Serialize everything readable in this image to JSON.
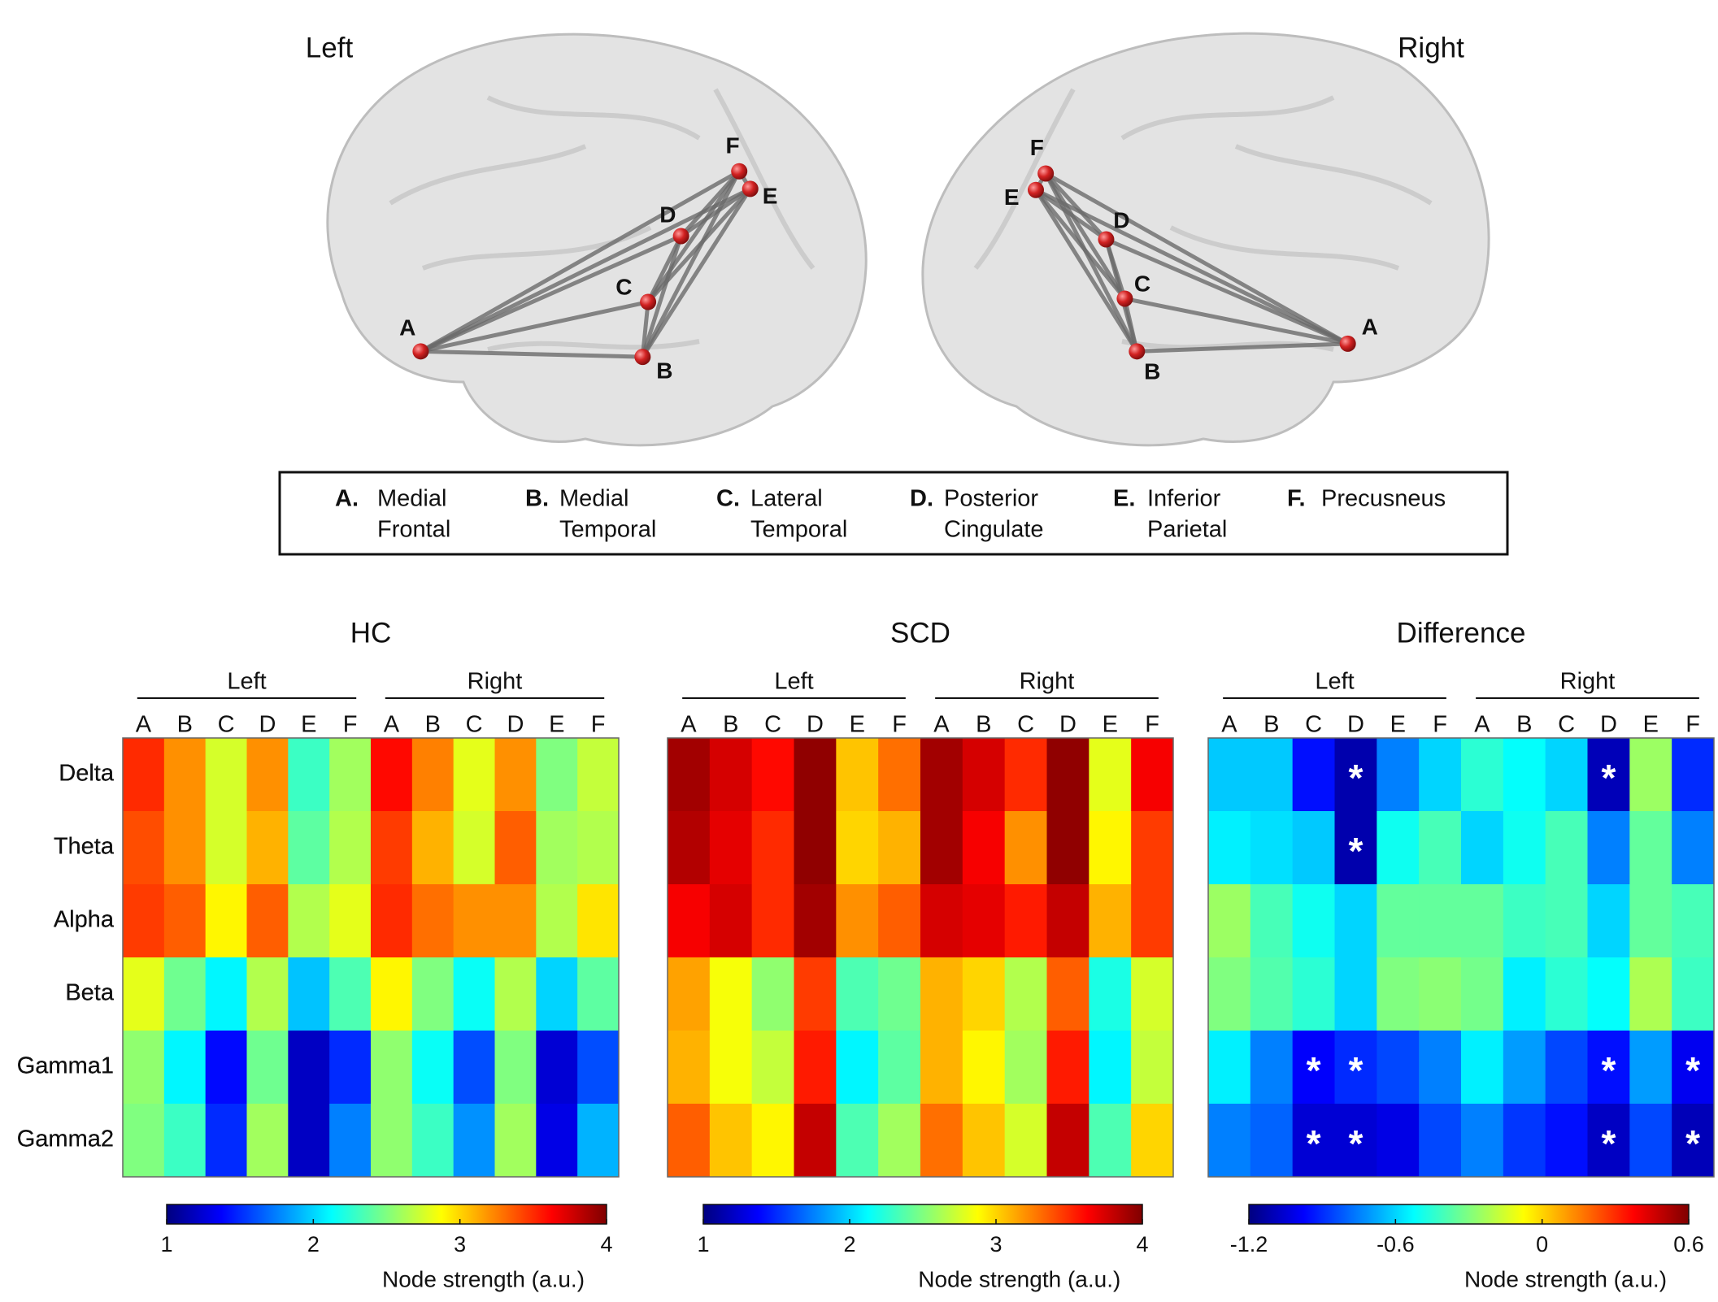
{
  "brain": {
    "left": {
      "label": "Left",
      "nodes": [
        {
          "label": "A"
        },
        {
          "label": "B"
        },
        {
          "label": "C"
        },
        {
          "label": "D"
        },
        {
          "label": "E"
        },
        {
          "label": "F"
        }
      ]
    },
    "right": {
      "label": "Right",
      "nodes": [
        {
          "label": "A"
        },
        {
          "label": "B"
        },
        {
          "label": "C"
        },
        {
          "label": "D"
        },
        {
          "label": "E"
        },
        {
          "label": "F"
        }
      ]
    }
  },
  "legend": {
    "items": [
      {
        "letter": "A.",
        "lines": [
          "Medial",
          "Frontal"
        ]
      },
      {
        "letter": "B.",
        "lines": [
          "Medial",
          "Temporal"
        ]
      },
      {
        "letter": "C.",
        "lines": [
          "Lateral",
          "Temporal"
        ]
      },
      {
        "letter": "D.",
        "lines": [
          "Posterior",
          "Cingulate"
        ]
      },
      {
        "letter": "E.",
        "lines": [
          "Inferior",
          "Parietal"
        ]
      },
      {
        "letter": "F.",
        "lines": [
          "Precusneus"
        ]
      }
    ]
  },
  "chart_data": [
    {
      "type": "heatmap",
      "title": "HC",
      "colormap": "jet",
      "groups": [
        {
          "name": "Left",
          "columns": [
            "A",
            "B",
            "C",
            "D",
            "E",
            "F"
          ]
        },
        {
          "name": "Right",
          "columns": [
            "A",
            "B",
            "C",
            "D",
            "E",
            "F"
          ]
        }
      ],
      "rows": [
        "Delta",
        "Theta",
        "Alpha",
        "Beta",
        "Gamma1",
        "Gamma2"
      ],
      "values": [
        [
          3.5,
          3.2,
          2.75,
          3.2,
          2.3,
          2.6,
          3.6,
          3.25,
          2.8,
          3.2,
          2.5,
          2.7
        ],
        [
          3.4,
          3.2,
          2.75,
          3.1,
          2.4,
          2.65,
          3.45,
          3.1,
          2.75,
          3.35,
          2.6,
          2.65
        ],
        [
          3.45,
          3.35,
          2.9,
          3.35,
          2.65,
          2.8,
          3.5,
          3.3,
          3.2,
          3.2,
          2.65,
          2.95
        ],
        [
          2.8,
          2.45,
          2.1,
          2.65,
          1.95,
          2.35,
          2.9,
          2.5,
          2.15,
          2.65,
          2.0,
          2.4
        ],
        [
          2.55,
          2.1,
          1.4,
          2.45,
          1.2,
          1.5,
          2.55,
          2.15,
          1.6,
          2.5,
          1.25,
          1.6
        ],
        [
          2.5,
          2.3,
          1.5,
          2.6,
          1.2,
          1.75,
          2.55,
          2.3,
          1.8,
          2.6,
          1.3,
          1.9
        ]
      ],
      "zlim": [
        1,
        4
      ],
      "zticks": [
        1,
        2,
        3,
        4
      ],
      "colorbar_label": "Node strength (a.u.)"
    },
    {
      "type": "heatmap",
      "title": "SCD",
      "colormap": "jet",
      "groups": [
        {
          "name": "Left",
          "columns": [
            "A",
            "B",
            "C",
            "D",
            "E",
            "F"
          ]
        },
        {
          "name": "Right",
          "columns": [
            "A",
            "B",
            "C",
            "D",
            "E",
            "F"
          ]
        }
      ],
      "rows": [
        "Delta",
        "Theta",
        "Alpha",
        "Beta",
        "Gamma1",
        "Gamma2"
      ],
      "values": [
        [
          3.9,
          3.75,
          3.6,
          3.95,
          3.05,
          3.3,
          3.9,
          3.75,
          3.5,
          3.95,
          2.8,
          3.65
        ],
        [
          3.85,
          3.7,
          3.5,
          3.95,
          3.0,
          3.1,
          3.9,
          3.65,
          3.2,
          3.95,
          2.9,
          3.45
        ],
        [
          3.65,
          3.75,
          3.5,
          3.9,
          3.2,
          3.35,
          3.75,
          3.7,
          3.55,
          3.8,
          3.1,
          3.45
        ],
        [
          3.15,
          2.85,
          2.55,
          3.45,
          2.35,
          2.45,
          3.1,
          3.0,
          2.65,
          3.35,
          2.2,
          2.75
        ],
        [
          3.1,
          2.85,
          2.7,
          3.55,
          2.1,
          2.4,
          3.1,
          2.9,
          2.6,
          3.55,
          2.1,
          2.7
        ],
        [
          3.35,
          3.05,
          2.9,
          3.8,
          2.35,
          2.6,
          3.3,
          3.05,
          2.75,
          3.8,
          2.35,
          3.0
        ]
      ],
      "zlim": [
        1,
        4
      ],
      "zticks": [
        1,
        2,
        3,
        4
      ],
      "colorbar_label": "Node strength (a.u.)"
    },
    {
      "type": "heatmap",
      "title": "Difference",
      "colormap": "jet",
      "groups": [
        {
          "name": "Left",
          "columns": [
            "A",
            "B",
            "C",
            "D",
            "E",
            "F"
          ]
        },
        {
          "name": "Right",
          "columns": [
            "A",
            "B",
            "C",
            "D",
            "E",
            "F"
          ]
        }
      ],
      "rows": [
        "Delta",
        "Theta",
        "Alpha",
        "Beta",
        "Gamma1",
        "Gamma2"
      ],
      "values": [
        [
          -0.62,
          -0.62,
          -0.95,
          -1.12,
          -0.75,
          -0.6,
          -0.45,
          -0.52,
          -0.6,
          -1.1,
          -0.25,
          -0.9
        ],
        [
          -0.55,
          -0.58,
          -0.62,
          -1.12,
          -0.5,
          -0.4,
          -0.6,
          -0.5,
          -0.4,
          -0.75,
          -0.35,
          -0.75
        ],
        [
          -0.25,
          -0.4,
          -0.5,
          -0.6,
          -0.35,
          -0.35,
          -0.35,
          -0.42,
          -0.4,
          -0.6,
          -0.35,
          -0.4
        ],
        [
          -0.3,
          -0.38,
          -0.45,
          -0.6,
          -0.3,
          -0.28,
          -0.32,
          -0.55,
          -0.45,
          -0.52,
          -0.22,
          -0.42
        ],
        [
          -0.55,
          -0.75,
          -0.98,
          -0.9,
          -0.85,
          -0.75,
          -0.55,
          -0.7,
          -0.85,
          -0.95,
          -0.7,
          -1.0
        ],
        [
          -0.75,
          -0.8,
          -1.05,
          -1.05,
          -1.02,
          -0.85,
          -0.75,
          -0.88,
          -0.95,
          -1.08,
          -0.85,
          -1.1
        ]
      ],
      "annotations": [
        {
          "row": "Delta",
          "group": "Left",
          "column": "D",
          "text": "*"
        },
        {
          "row": "Delta",
          "group": "Right",
          "column": "D",
          "text": "*"
        },
        {
          "row": "Theta",
          "group": "Left",
          "column": "D",
          "text": "*"
        },
        {
          "row": "Gamma1",
          "group": "Left",
          "column": "C",
          "text": "*"
        },
        {
          "row": "Gamma1",
          "group": "Left",
          "column": "D",
          "text": "*"
        },
        {
          "row": "Gamma1",
          "group": "Right",
          "column": "D",
          "text": "*"
        },
        {
          "row": "Gamma1",
          "group": "Right",
          "column": "F",
          "text": "*"
        },
        {
          "row": "Gamma2",
          "group": "Left",
          "column": "C",
          "text": "*"
        },
        {
          "row": "Gamma2",
          "group": "Left",
          "column": "D",
          "text": "*"
        },
        {
          "row": "Gamma2",
          "group": "Right",
          "column": "D",
          "text": "*"
        },
        {
          "row": "Gamma2",
          "group": "Right",
          "column": "F",
          "text": "*"
        }
      ],
      "zlim": [
        -1.2,
        0.6
      ],
      "zticks": [
        -1.2,
        -0.6,
        0,
        0.6
      ],
      "colorbar_label": "Node strength (a.u.)"
    }
  ]
}
